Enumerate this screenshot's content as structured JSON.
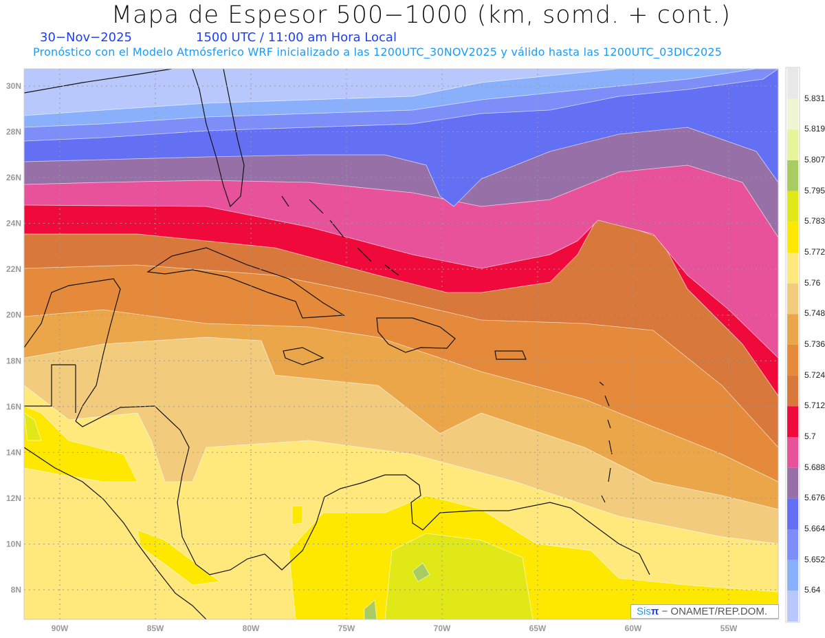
{
  "header": {
    "title": "Mapa de Espesor 500−1000 (km, somd. + cont.)",
    "date": "30−Nov−2025",
    "time": "1500 UTC / 11:00 am Hora Local",
    "subtitle": "Pronóstico con el Modelo Atmósferico WRF inicializado a las 1200UTC_30NOV2025 y válido hasta las  1200UTC_03DIC2025"
  },
  "axes": {
    "lon_labels": [
      "90W",
      "85W",
      "80W",
      "75W",
      "70W",
      "65W",
      "60W",
      "55W"
    ],
    "lat_labels": [
      "8N",
      "10N",
      "12N",
      "14N",
      "16N",
      "18N",
      "20N",
      "22N",
      "24N",
      "26N",
      "28N",
      "30N"
    ]
  },
  "colorbar": {
    "labels": [
      "5.831",
      "5.819",
      "5.807",
      "5.795",
      "5.783",
      "5.772",
      "5.76",
      "5.748",
      "5.736",
      "5.724",
      "5.712",
      "5.7",
      "5.688",
      "5.676",
      "5.664",
      "5.652",
      "5.64"
    ],
    "colors": [
      "#e8e8e8",
      "#f0f5d2",
      "#e6f59c",
      "#a8cc62",
      "#e0e81a",
      "#ffe800",
      "#ffe87c",
      "#f2cc7c",
      "#eca64a",
      "#e48a3a",
      "#d8783a",
      "#f00a3c",
      "#e8529a",
      "#9870a8",
      "#6470f4",
      "#7e8ef8",
      "#8ab0fc",
      "#b8c8fc"
    ]
  },
  "credit": {
    "sis": "Sis",
    "pi": "π",
    "rest": "− ONAMET/REP.DOM."
  }
}
